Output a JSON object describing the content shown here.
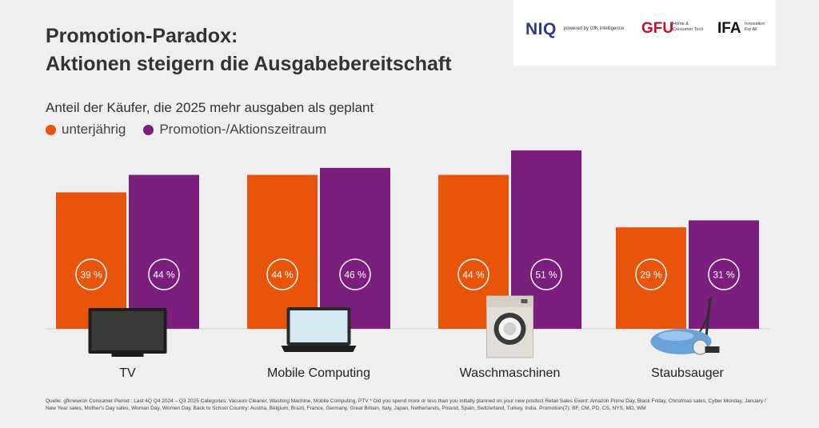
{
  "header": {
    "title_line1": "Promotion-Paradox:",
    "title_line2": "Aktionen steigern die Ausgabebereitschaft"
  },
  "logos": {
    "niq": "NIQ",
    "powered": "powered by GfK Intelligence",
    "gfu": "GFU",
    "gfu_sub1": "Home &",
    "gfu_sub2": "Consumer Tech",
    "ifa": "IFA",
    "ifa_sub1": "Innovation",
    "ifa_sub2": "For All"
  },
  "colors": {
    "background": "#efefef",
    "unterjaehrig": "#e8540a",
    "promotion": "#7b1e7e"
  },
  "chart_data": {
    "type": "bar",
    "subtitle": "Anteil der Käufer, die 2025 mehr ausgaben als geplant",
    "categories": [
      "TV",
      "Mobile Computing",
      "Waschmaschinen",
      "Staubsauger"
    ],
    "icons": [
      "tv-icon",
      "laptop-icon",
      "washing-machine-icon",
      "vacuum-cleaner-icon"
    ],
    "series": [
      {
        "name": "unterjährig",
        "values": [
          39,
          44,
          44,
          29
        ],
        "labels": [
          "39 %",
          "44 %",
          "44 %",
          "29 %"
        ],
        "color": "#e8540a"
      },
      {
        "name": "Promotion-/Aktionszeitraum",
        "values": [
          44,
          46,
          51,
          31
        ],
        "labels": [
          "44 %",
          "46 %",
          "51 %",
          "31 %"
        ],
        "color": "#7b1e7e"
      }
    ],
    "ylim": [
      0,
      51
    ],
    "legend_position": "top-left",
    "grid": false
  },
  "footer": {
    "source": "Quelle: gfknewron Consumer Period : Last 4Q Q4 2024 – Q3 2025 Categories: Vacuum Cleaner, Washing Machine, Mobile Computing, PTV  * Did you spend more or less than you initially planned on your new product Retail Sales Event: Amazon Prime Day, Black Friday, Christmas sales, Cyber Monday, January / New Year sales, Mother's Day sales, Woman Day, Women Day, Back to School Country: Austria, Belgium, Brazil, France, Germany, Great Britain, Italy, Japan, Netherlands, Poland, Spain, Switzerland, Turkey, India. Promotion(7): BF, CM, PD, CS, NYS, MD, WM"
  }
}
